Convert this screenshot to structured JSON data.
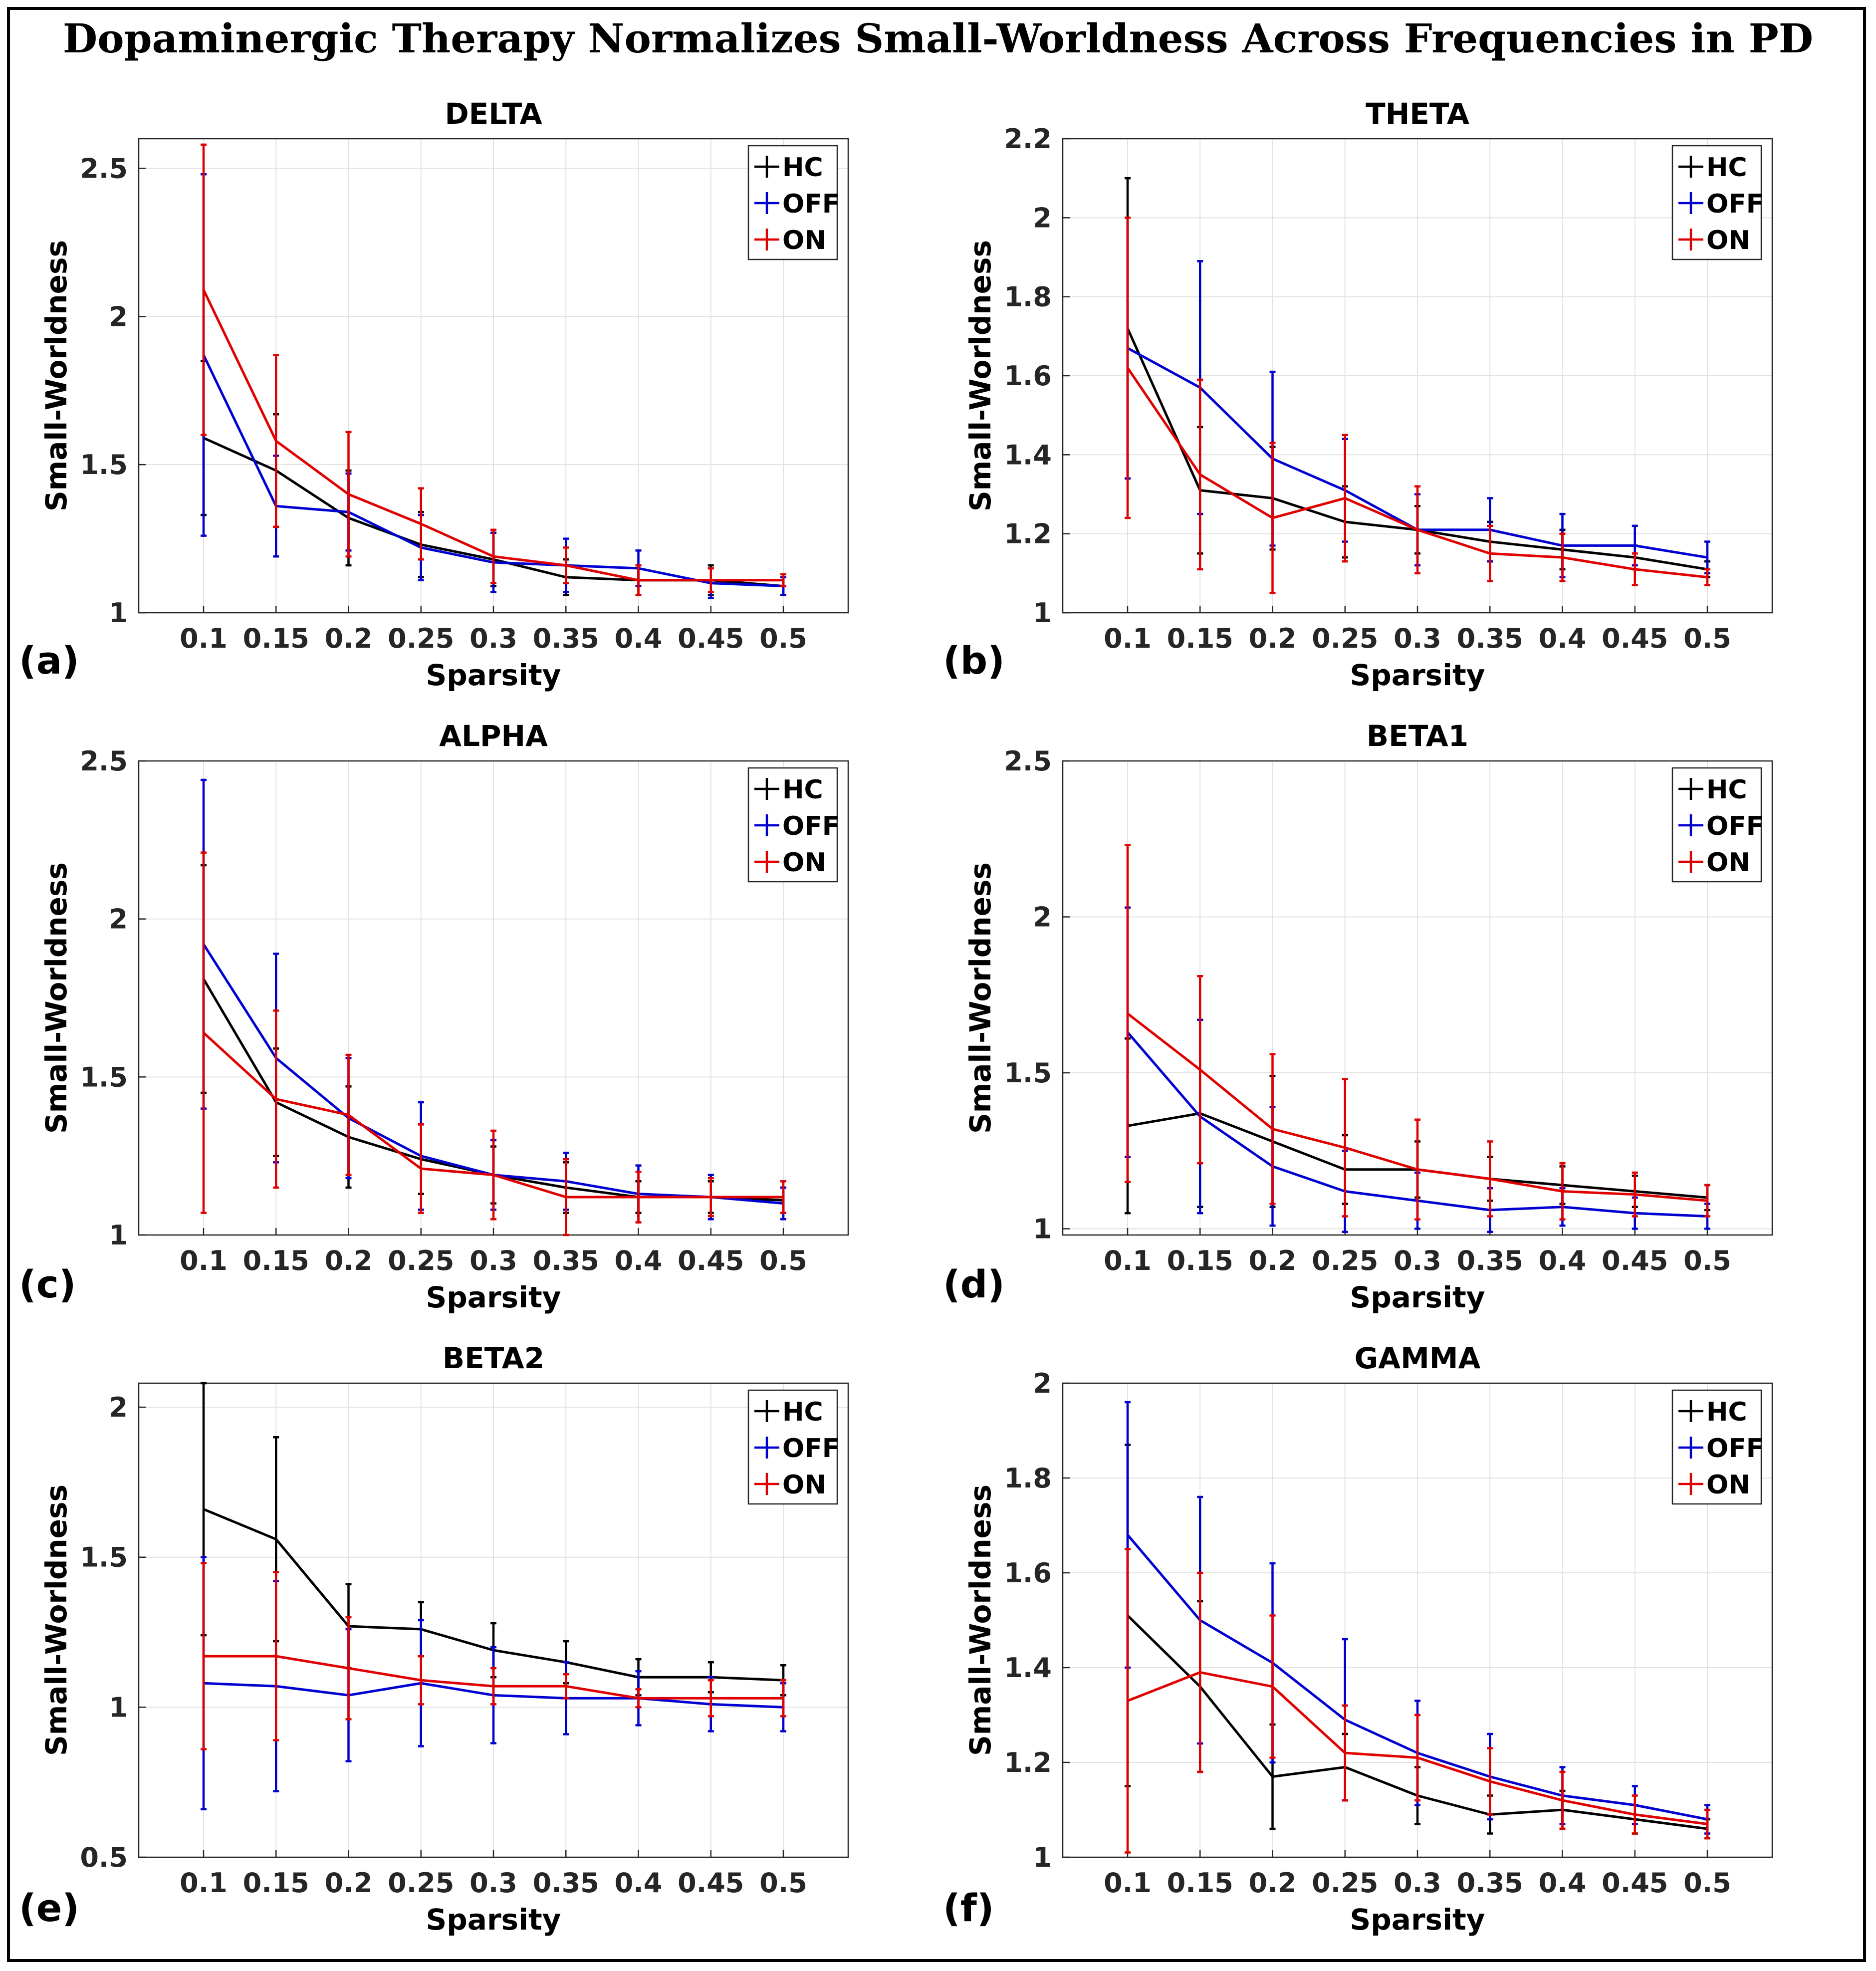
{
  "title": "Dopaminergic Therapy Normalizes Small-Worldness Across Frequencies in PD",
  "colors": {
    "HC": "#000000",
    "OFF": "#0000d0",
    "ON": "#e00000"
  },
  "chart_data": [
    {
      "type": "line",
      "panel": "(a)",
      "title": "DELTA",
      "xlabel": "Sparsity",
      "ylabel": "Small-Worldness",
      "categories": [
        "0.1",
        "0.15",
        "0.2",
        "0.25",
        "0.3",
        "0.35",
        "0.4",
        "0.45",
        "0.5"
      ],
      "ylim": [
        1,
        2.6
      ],
      "yticks": [
        1,
        1.5,
        2,
        2.5
      ],
      "ytick_labels": [
        "1",
        "1.5",
        "2",
        "2.5"
      ],
      "legend": [
        "HC",
        "OFF",
        "ON"
      ],
      "grid": true,
      "series": [
        {
          "name": "HC",
          "values": [
            1.59,
            1.48,
            1.32,
            1.23,
            1.18,
            1.12,
            1.11,
            1.11,
            1.09
          ],
          "errors": [
            0.26,
            0.19,
            0.16,
            0.11,
            0.09,
            0.06,
            0.05,
            0.05,
            0.03
          ]
        },
        {
          "name": "OFF",
          "values": [
            1.87,
            1.36,
            1.34,
            1.22,
            1.17,
            1.16,
            1.15,
            1.1,
            1.09
          ],
          "errors": [
            0.61,
            0.17,
            0.13,
            0.11,
            0.1,
            0.09,
            0.06,
            0.05,
            0.03
          ]
        },
        {
          "name": "ON",
          "values": [
            2.09,
            1.58,
            1.4,
            1.3,
            1.19,
            1.16,
            1.11,
            1.11,
            1.11
          ],
          "errors": [
            0.49,
            0.29,
            0.21,
            0.12,
            0.09,
            0.06,
            0.05,
            0.04,
            0.02
          ]
        }
      ]
    },
    {
      "type": "line",
      "panel": "(b)",
      "title": "THETA",
      "xlabel": "Sparsity",
      "ylabel": "Small-Worldness",
      "categories": [
        "0.1",
        "0.15",
        "0.2",
        "0.25",
        "0.3",
        "0.35",
        "0.4",
        "0.45",
        "0.5"
      ],
      "ylim": [
        1,
        2.2
      ],
      "yticks": [
        1,
        1.2,
        1.4,
        1.6,
        1.8,
        2,
        2.2
      ],
      "ytick_labels": [
        "1",
        "1.2",
        "1.4",
        "1.6",
        "1.8",
        "2",
        "2.2"
      ],
      "legend": [
        "HC",
        "OFF",
        "ON"
      ],
      "grid": true,
      "series": [
        {
          "name": "HC",
          "values": [
            1.72,
            1.31,
            1.29,
            1.23,
            1.21,
            1.18,
            1.16,
            1.14,
            1.11
          ],
          "errors": [
            0.38,
            0.16,
            0.13,
            0.09,
            0.06,
            0.05,
            0.05,
            0.03,
            0.02
          ]
        },
        {
          "name": "OFF",
          "values": [
            1.67,
            1.57,
            1.39,
            1.31,
            1.21,
            1.21,
            1.17,
            1.17,
            1.14
          ],
          "errors": [
            0.33,
            0.32,
            0.22,
            0.13,
            0.09,
            0.08,
            0.08,
            0.05,
            0.04
          ]
        },
        {
          "name": "ON",
          "values": [
            1.62,
            1.35,
            1.24,
            1.29,
            1.21,
            1.15,
            1.14,
            1.11,
            1.09
          ],
          "errors": [
            0.38,
            0.24,
            0.19,
            0.16,
            0.11,
            0.07,
            0.06,
            0.04,
            0.02
          ]
        }
      ]
    },
    {
      "type": "line",
      "panel": "(c)",
      "title": "ALPHA",
      "xlabel": "Sparsity",
      "ylabel": "Small-Worldness",
      "categories": [
        "0.1",
        "0.15",
        "0.2",
        "0.25",
        "0.3",
        "0.35",
        "0.4",
        "0.45",
        "0.5"
      ],
      "ylim": [
        1,
        2.5
      ],
      "yticks": [
        1,
        1.5,
        2,
        2.5
      ],
      "ytick_labels": [
        "1",
        "1.5",
        "2",
        "2.5"
      ],
      "legend": [
        "HC",
        "OFF",
        "ON"
      ],
      "grid": true,
      "series": [
        {
          "name": "HC",
          "values": [
            1.81,
            1.42,
            1.31,
            1.24,
            1.19,
            1.15,
            1.12,
            1.12,
            1.11
          ],
          "errors": [
            0.36,
            0.17,
            0.16,
            0.11,
            0.09,
            0.08,
            0.05,
            0.05,
            0.04
          ]
        },
        {
          "name": "OFF",
          "values": [
            1.92,
            1.56,
            1.37,
            1.25,
            1.19,
            1.17,
            1.13,
            1.12,
            1.1
          ],
          "errors": [
            0.52,
            0.33,
            0.19,
            0.17,
            0.11,
            0.09,
            0.09,
            0.07,
            0.05
          ]
        },
        {
          "name": "ON",
          "values": [
            1.64,
            1.43,
            1.38,
            1.21,
            1.19,
            1.12,
            1.12,
            1.12,
            1.12
          ],
          "errors": [
            0.57,
            0.28,
            0.19,
            0.14,
            0.14,
            0.12,
            0.08,
            0.06,
            0.05
          ]
        }
      ]
    },
    {
      "type": "line",
      "panel": "(d)",
      "title": "BETA1",
      "xlabel": "Sparsity",
      "ylabel": "Small-Worldness",
      "categories": [
        "0.1",
        "0.15",
        "0.2",
        "0.25",
        "0.3",
        "0.35",
        "0.4",
        "0.45",
        "0.5"
      ],
      "ylim": [
        0.98,
        2.5
      ],
      "yticks": [
        1,
        1.5,
        2,
        2.5
      ],
      "ytick_labels": [
        "1",
        "1.5",
        "2",
        "2.5"
      ],
      "legend": [
        "HC",
        "OFF",
        "ON"
      ],
      "grid": true,
      "series": [
        {
          "name": "HC",
          "values": [
            1.33,
            1.37,
            1.28,
            1.19,
            1.19,
            1.16,
            1.14,
            1.12,
            1.1
          ],
          "errors": [
            0.28,
            0.3,
            0.21,
            0.11,
            0.09,
            0.07,
            0.06,
            0.05,
            0.04
          ]
        },
        {
          "name": "OFF",
          "values": [
            1.63,
            1.36,
            1.2,
            1.12,
            1.09,
            1.06,
            1.07,
            1.05,
            1.04
          ],
          "errors": [
            0.4,
            0.31,
            0.19,
            0.13,
            0.09,
            0.07,
            0.06,
            0.05,
            0.04
          ]
        },
        {
          "name": "ON",
          "values": [
            1.69,
            1.51,
            1.32,
            1.26,
            1.19,
            1.16,
            1.12,
            1.11,
            1.09
          ],
          "errors": [
            0.54,
            0.3,
            0.24,
            0.22,
            0.16,
            0.12,
            0.09,
            0.07,
            0.05
          ]
        }
      ]
    },
    {
      "type": "line",
      "panel": "(e)",
      "title": "BETA2",
      "xlabel": "Sparsity",
      "ylabel": "Small-Worldness",
      "categories": [
        "0.1",
        "0.15",
        "0.2",
        "0.25",
        "0.3",
        "0.35",
        "0.4",
        "0.45",
        "0.5"
      ],
      "ylim": [
        0.5,
        2.08
      ],
      "yticks": [
        0.5,
        1,
        1.5,
        2
      ],
      "ytick_labels": [
        "0.5",
        "1",
        "1.5",
        "2"
      ],
      "legend": [
        "HC",
        "OFF",
        "ON"
      ],
      "grid": true,
      "series": [
        {
          "name": "HC",
          "values": [
            1.66,
            1.56,
            1.27,
            1.26,
            1.19,
            1.15,
            1.1,
            1.1,
            1.09
          ],
          "errors": [
            0.42,
            0.34,
            0.14,
            0.09,
            0.09,
            0.07,
            0.06,
            0.05,
            0.05
          ]
        },
        {
          "name": "OFF",
          "values": [
            1.08,
            1.07,
            1.04,
            1.08,
            1.04,
            1.03,
            1.03,
            1.01,
            1.0
          ],
          "errors": [
            0.42,
            0.35,
            0.22,
            0.21,
            0.16,
            0.12,
            0.09,
            0.09,
            0.08
          ]
        },
        {
          "name": "ON",
          "values": [
            1.17,
            1.17,
            1.13,
            1.09,
            1.07,
            1.07,
            1.03,
            1.03,
            1.03
          ],
          "errors": [
            0.31,
            0.28,
            0.17,
            0.08,
            0.06,
            0.04,
            0.03,
            0.06,
            0.06
          ]
        }
      ]
    },
    {
      "type": "line",
      "panel": "(f)",
      "title": "GAMMA",
      "xlabel": "Sparsity",
      "ylabel": "Small-Worldness",
      "categories": [
        "0.1",
        "0.15",
        "0.2",
        "0.25",
        "0.3",
        "0.35",
        "0.4",
        "0.45",
        "0.5"
      ],
      "ylim": [
        1,
        2
      ],
      "yticks": [
        1,
        1.2,
        1.4,
        1.6,
        1.8,
        2
      ],
      "ytick_labels": [
        "1",
        "1.2",
        "1.4",
        "1.6",
        "1.8",
        "2"
      ],
      "legend": [
        "HC",
        "OFF",
        "ON"
      ],
      "grid": true,
      "series": [
        {
          "name": "HC",
          "values": [
            1.51,
            1.36,
            1.17,
            1.19,
            1.13,
            1.09,
            1.1,
            1.08,
            1.06
          ],
          "errors": [
            0.36,
            0.18,
            0.11,
            0.07,
            0.06,
            0.04,
            0.04,
            0.03,
            0.02
          ]
        },
        {
          "name": "OFF",
          "values": [
            1.68,
            1.5,
            1.41,
            1.29,
            1.22,
            1.17,
            1.13,
            1.11,
            1.08
          ],
          "errors": [
            0.28,
            0.26,
            0.21,
            0.17,
            0.11,
            0.09,
            0.06,
            0.04,
            0.03
          ]
        },
        {
          "name": "ON",
          "values": [
            1.33,
            1.39,
            1.36,
            1.22,
            1.21,
            1.16,
            1.12,
            1.09,
            1.07
          ],
          "errors": [
            0.32,
            0.21,
            0.15,
            0.1,
            0.09,
            0.07,
            0.06,
            0.04,
            0.03
          ]
        }
      ]
    }
  ],
  "panel_labels": [
    "(a)",
    "(b)",
    "(c)",
    "(d)",
    "(e)",
    "(f)"
  ]
}
